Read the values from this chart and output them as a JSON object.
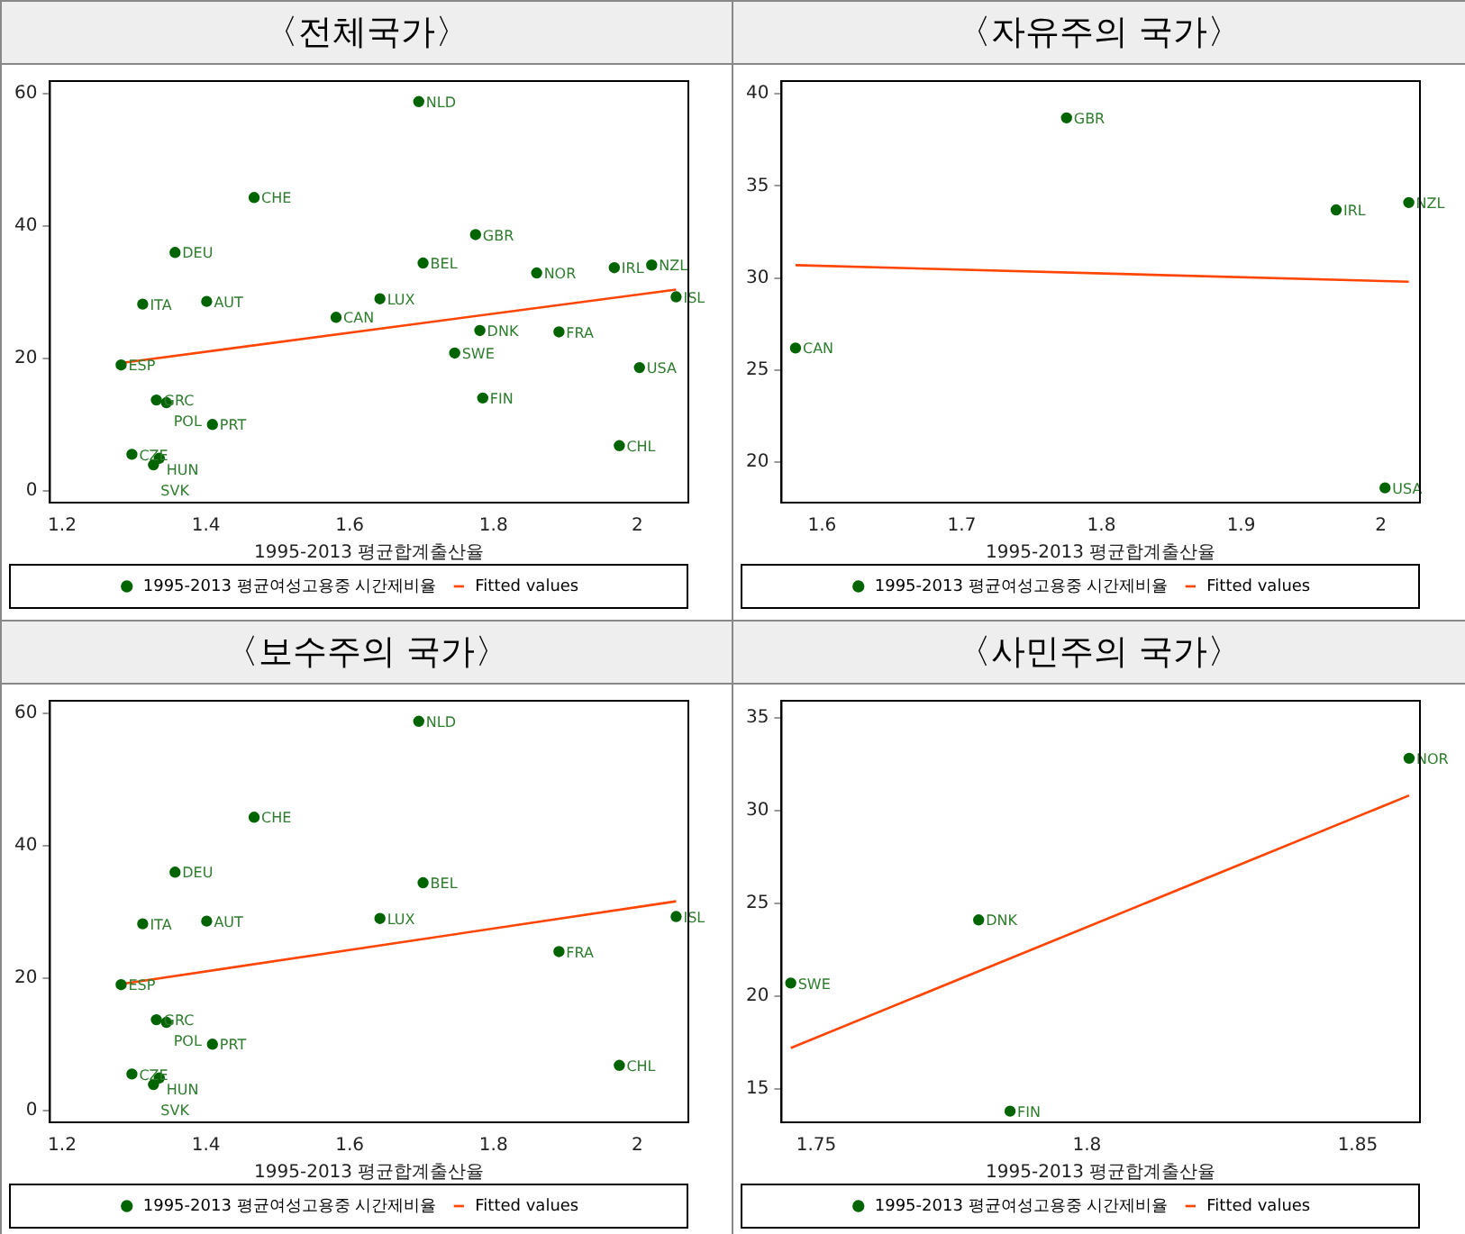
{
  "chart_data": [
    {
      "type": "scatter",
      "title": "〈전체국가〉",
      "xlabel": "1995-2013 평균합계출산율",
      "xlim": [
        1.183,
        2.071
      ],
      "ylim": [
        -1.8,
        61.9
      ],
      "xticks": [
        1.2,
        1.4,
        1.6,
        1.8,
        2
      ],
      "yticks": [
        0,
        20,
        40,
        60
      ],
      "grid": false,
      "legend": "bottom",
      "marker": "circle",
      "series": [
        {
          "name": "1995-2013 평균여성고용중 시간제비율",
          "type": "scatter",
          "color": "#006400",
          "x": [
            1.696,
            1.467,
            1.775,
            1.357,
            1.702,
            1.86,
            1.968,
            2.02,
            1.312,
            1.401,
            1.642,
            2.054,
            1.581,
            1.781,
            1.891,
            1.746,
            1.282,
            2.003,
            1.785,
            1.331,
            1.345,
            1.409,
            1.297,
            1.335,
            1.327,
            1.975
          ],
          "values": [
            58.8,
            44.3,
            38.7,
            36.0,
            34.4,
            32.9,
            33.7,
            34.1,
            28.2,
            28.6,
            29.0,
            29.3,
            26.2,
            24.2,
            24.0,
            20.8,
            19.0,
            18.6,
            14.0,
            13.7,
            13.3,
            10.0,
            5.5,
            4.9,
            3.9,
            6.8
          ]
        },
        {
          "name": "Fitted values",
          "type": "line",
          "marker": "none",
          "color": "#ff4500",
          "x": [
            1.282,
            2.054
          ],
          "values": [
            19.3,
            30.4
          ]
        }
      ],
      "annotations": [
        {
          "text": "NLD",
          "x": 1.696,
          "y": 58.8
        },
        {
          "text": "CHE",
          "x": 1.467,
          "y": 44.3
        },
        {
          "text": "GBR",
          "x": 1.775,
          "y": 38.7
        },
        {
          "text": "DEU",
          "x": 1.357,
          "y": 36.0
        },
        {
          "text": "BEL",
          "x": 1.702,
          "y": 34.4
        },
        {
          "text": "NOR",
          "x": 1.86,
          "y": 32.9
        },
        {
          "text": "IRL",
          "x": 1.968,
          "y": 33.7
        },
        {
          "text": "NZL",
          "x": 2.02,
          "y": 34.1
        },
        {
          "text": "ITA",
          "x": 1.312,
          "y": 28.2
        },
        {
          "text": "AUT",
          "x": 1.401,
          "y": 28.6
        },
        {
          "text": "LUX",
          "x": 1.642,
          "y": 29.0
        },
        {
          "text": "ISL",
          "x": 2.054,
          "y": 29.3
        },
        {
          "text": "CAN",
          "x": 1.581,
          "y": 26.2
        },
        {
          "text": "DNK",
          "x": 1.781,
          "y": 24.2
        },
        {
          "text": "FRA",
          "x": 1.891,
          "y": 24.0
        },
        {
          "text": "SWE",
          "x": 1.746,
          "y": 20.8
        },
        {
          "text": "ESP",
          "x": 1.282,
          "y": 19.0
        },
        {
          "text": "USA",
          "x": 2.003,
          "y": 18.6
        },
        {
          "text": "FIN",
          "x": 1.785,
          "y": 14.0
        },
        {
          "text": "GRC",
          "x": 1.331,
          "y": 13.7
        },
        {
          "text": "POL",
          "x": 1.345,
          "y": 13.3
        },
        {
          "text": "PRT",
          "x": 1.409,
          "y": 10.0
        },
        {
          "text": "CZE",
          "x": 1.297,
          "y": 5.5
        },
        {
          "text": "HUN",
          "x": 1.335,
          "y": 4.9
        },
        {
          "text": "SVK",
          "x": 1.327,
          "y": 3.9
        },
        {
          "text": "CHL",
          "x": 1.975,
          "y": 6.8
        }
      ]
    },
    {
      "type": "scatter",
      "title": "〈자유주의 국가〉",
      "xlabel": "1995-2013 평균합계출산율",
      "xlim": [
        1.571,
        2.028
      ],
      "ylim": [
        17.8,
        40.7
      ],
      "xticks": [
        1.6,
        1.7,
        1.8,
        1.9,
        2
      ],
      "yticks": [
        20,
        25,
        30,
        35,
        40
      ],
      "grid": false,
      "legend": "bottom",
      "marker": "circle",
      "series": [
        {
          "name": "1995-2013 평균여성고용중 시간제비율",
          "type": "scatter",
          "color": "#006400",
          "x": [
            1.581,
            1.775,
            1.968,
            2.02,
            2.003
          ],
          "values": [
            26.2,
            38.7,
            33.7,
            34.1,
            18.6
          ]
        },
        {
          "name": "Fitted values",
          "type": "line",
          "marker": "none",
          "color": "#ff4500",
          "x": [
            1.581,
            2.02
          ],
          "values": [
            30.7,
            29.8
          ]
        }
      ],
      "annotations": [
        {
          "text": "CAN",
          "x": 1.581,
          "y": 26.2
        },
        {
          "text": "GBR",
          "x": 1.775,
          "y": 38.7
        },
        {
          "text": "IRL",
          "x": 1.968,
          "y": 33.7
        },
        {
          "text": "NZL",
          "x": 2.02,
          "y": 34.1
        },
        {
          "text": "USA",
          "x": 2.003,
          "y": 18.6
        }
      ]
    },
    {
      "type": "scatter",
      "title": "〈보수주의 국가〉",
      "xlabel": "1995-2013 평균합계출산율",
      "xlim": [
        1.183,
        2.071
      ],
      "ylim": [
        -1.8,
        61.9
      ],
      "xticks": [
        1.2,
        1.4,
        1.6,
        1.8,
        2
      ],
      "yticks": [
        0,
        20,
        40,
        60
      ],
      "grid": false,
      "legend": "bottom",
      "marker": "circle",
      "series": [
        {
          "name": "1995-2013 평균여성고용중 시간제비율",
          "type": "scatter",
          "color": "#006400",
          "x": [
            1.696,
            1.467,
            1.357,
            1.702,
            1.312,
            1.401,
            1.642,
            2.054,
            1.891,
            1.282,
            1.331,
            1.345,
            1.409,
            1.297,
            1.335,
            1.327,
            1.975
          ],
          "values": [
            58.8,
            44.3,
            36.0,
            34.4,
            28.2,
            28.6,
            29.0,
            29.3,
            24.0,
            19.0,
            13.7,
            13.3,
            10.0,
            5.5,
            4.9,
            3.9,
            6.8
          ]
        },
        {
          "name": "Fitted values",
          "type": "line",
          "marker": "none",
          "color": "#ff4500",
          "x": [
            1.282,
            2.054
          ],
          "values": [
            19.1,
            31.6
          ]
        }
      ],
      "annotations": [
        {
          "text": "NLD",
          "x": 1.696,
          "y": 58.8
        },
        {
          "text": "CHE",
          "x": 1.467,
          "y": 44.3
        },
        {
          "text": "DEU",
          "x": 1.357,
          "y": 36.0
        },
        {
          "text": "BEL",
          "x": 1.702,
          "y": 34.4
        },
        {
          "text": "ITA",
          "x": 1.312,
          "y": 28.2
        },
        {
          "text": "AUT",
          "x": 1.401,
          "y": 28.6
        },
        {
          "text": "LUX",
          "x": 1.642,
          "y": 29.0
        },
        {
          "text": "ISL",
          "x": 2.054,
          "y": 29.3
        },
        {
          "text": "FRA",
          "x": 1.891,
          "y": 24.0
        },
        {
          "text": "ESP",
          "x": 1.282,
          "y": 19.0
        },
        {
          "text": "GRC",
          "x": 1.331,
          "y": 13.7
        },
        {
          "text": "POL",
          "x": 1.345,
          "y": 13.3
        },
        {
          "text": "PRT",
          "x": 1.409,
          "y": 10.0
        },
        {
          "text": "CZE",
          "x": 1.297,
          "y": 5.5
        },
        {
          "text": "HUN",
          "x": 1.335,
          "y": 4.9
        },
        {
          "text": "SVK",
          "x": 1.327,
          "y": 3.9
        },
        {
          "text": "CHL",
          "x": 1.975,
          "y": 6.8
        }
      ]
    },
    {
      "type": "scatter",
      "title": "〈사민주의 국가〉",
      "xlabel": "1995-2013 평균합계출산율",
      "xlim": [
        1.7436,
        1.8615
      ],
      "ylim": [
        13.2,
        35.9
      ],
      "xticks": [
        1.75,
        1.8,
        1.85
      ],
      "yticks": [
        15,
        20,
        25,
        30,
        35
      ],
      "grid": false,
      "legend": "bottom",
      "marker": "circle",
      "series": [
        {
          "name": "1995-2013 평균여성고용중 시간제비율",
          "type": "scatter",
          "color": "#006400",
          "x": [
            1.7453,
            1.78,
            1.7858,
            1.8595
          ],
          "values": [
            20.7,
            24.1,
            13.8,
            32.8
          ]
        },
        {
          "name": "Fitted values",
          "type": "line",
          "marker": "none",
          "color": "#ff4500",
          "x": [
            1.7453,
            1.8595
          ],
          "values": [
            17.2,
            30.8
          ]
        }
      ],
      "annotations": [
        {
          "text": "SWE",
          "x": 1.7453,
          "y": 20.7
        },
        {
          "text": "DNK",
          "x": 1.78,
          "y": 24.1
        },
        {
          "text": "FIN",
          "x": 1.7858,
          "y": 13.8
        },
        {
          "text": "NOR",
          "x": 1.8595,
          "y": 32.8
        }
      ]
    }
  ]
}
